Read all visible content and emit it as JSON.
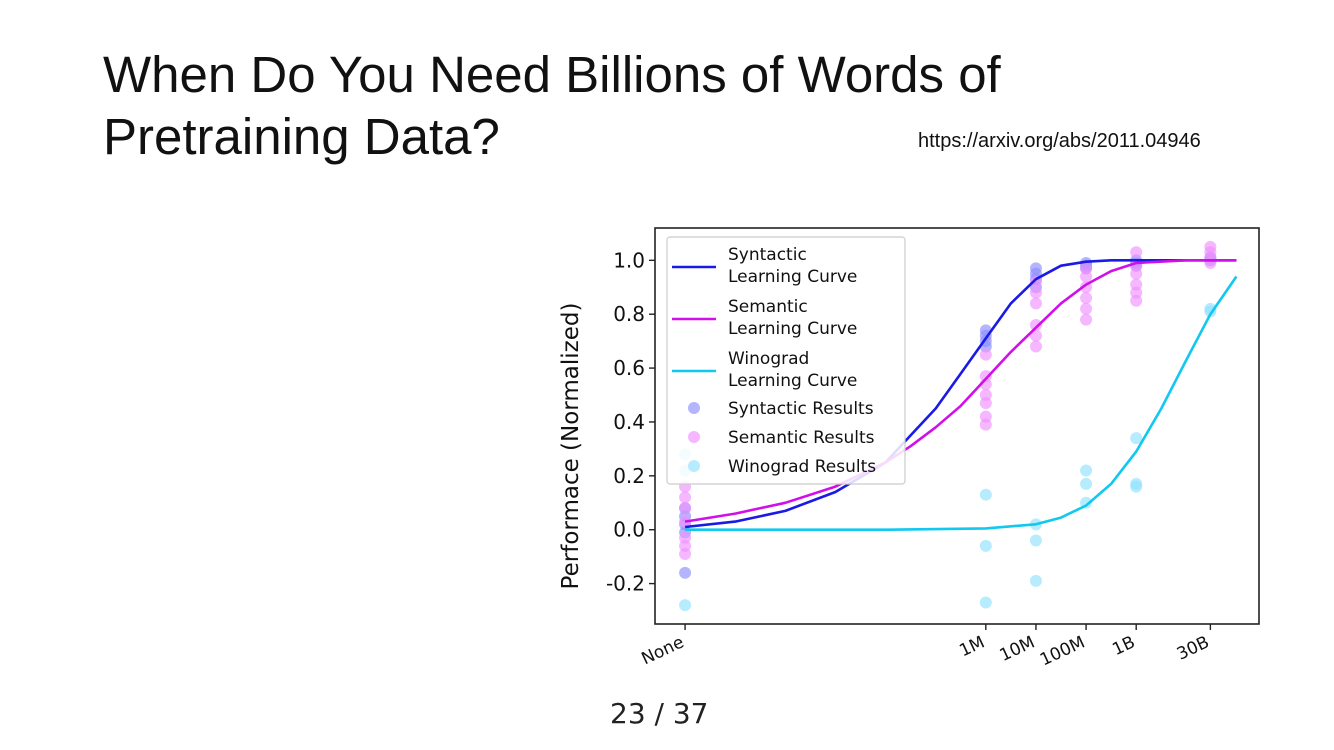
{
  "slide": {
    "title_line1": "When Do You Need Billions of Words of",
    "title_line2": "Pretraining Data?",
    "source_url": "https://arxiv.org/abs/2011.04946",
    "page_counter": "23 / 37"
  },
  "colors": {
    "syntactic": "#1a1ae6",
    "semantic": "#d010e8",
    "winograd": "#10c8f0",
    "syntactic_dot": "#8c8cff",
    "semantic_dot": "#f090ff",
    "winograd_dot": "#90e2ff"
  },
  "chart_data": {
    "type": "scatter",
    "title": "",
    "xlabel": "",
    "ylabel": "Performace (Normalized)",
    "x_scale": "log10 words (None at 0)",
    "x_ticks": [
      {
        "label": "None",
        "x": 0
      },
      {
        "label": "1M",
        "x": 6
      },
      {
        "label": "10M",
        "x": 7
      },
      {
        "label": "100M",
        "x": 8
      },
      {
        "label": "1B",
        "x": 9
      },
      {
        "label": "30B",
        "x": 10.48
      }
    ],
    "xlim": [
      -0.6,
      11.45
    ],
    "ylim": [
      -0.35,
      1.12
    ],
    "y_ticks": [
      "1.0",
      "0.8",
      "0.6",
      "0.4",
      "0.2",
      "0.0",
      "-0.2"
    ],
    "y_tick_values": [
      1.0,
      0.8,
      0.6,
      0.4,
      0.2,
      0.0,
      -0.2
    ],
    "legend_position": "top-left",
    "legend": [
      {
        "kind": "line",
        "series": "syntactic",
        "label1": "Syntactic",
        "label2": "Learning Curve"
      },
      {
        "kind": "line",
        "series": "semantic",
        "label1": "Semantic",
        "label2": "Learning Curve"
      },
      {
        "kind": "line",
        "series": "winograd",
        "label1": "Winograd",
        "label2": "Learning Curve"
      },
      {
        "kind": "dot",
        "series": "syntactic",
        "label1": "Syntactic Results"
      },
      {
        "kind": "dot",
        "series": "semantic",
        "label1": "Semantic Results"
      },
      {
        "kind": "dot",
        "series": "winograd",
        "label1": "Winograd Results"
      }
    ],
    "curves": [
      {
        "name": "Syntactic Learning Curve",
        "series": "syntactic",
        "x": [
          0,
          1,
          2,
          3,
          4,
          4.5,
          5,
          5.5,
          6,
          6.5,
          7,
          7.5,
          8,
          8.5,
          9,
          10,
          10.48,
          11
        ],
        "y": [
          0.01,
          0.03,
          0.07,
          0.14,
          0.25,
          0.35,
          0.45,
          0.58,
          0.71,
          0.84,
          0.93,
          0.98,
          0.995,
          1.0,
          1.0,
          1.0,
          1.0,
          1.0
        ]
      },
      {
        "name": "Semantic Learning Curve",
        "series": "semantic",
        "x": [
          0,
          1,
          2,
          3,
          4,
          4.5,
          5,
          5.5,
          6,
          6.5,
          7,
          7.5,
          8,
          8.5,
          9,
          10,
          10.48,
          11
        ],
        "y": [
          0.03,
          0.06,
          0.1,
          0.16,
          0.25,
          0.31,
          0.38,
          0.46,
          0.56,
          0.66,
          0.75,
          0.84,
          0.91,
          0.96,
          0.99,
          1.0,
          1.0,
          1.0
        ]
      },
      {
        "name": "Winograd Learning Curve",
        "series": "winograd",
        "x": [
          0,
          2,
          4,
          6,
          7,
          7.5,
          8,
          8.5,
          9,
          9.5,
          10,
          10.48,
          11
        ],
        "y": [
          0.0,
          0.0,
          0.0,
          0.005,
          0.02,
          0.045,
          0.09,
          0.17,
          0.29,
          0.45,
          0.63,
          0.8,
          0.94
        ]
      }
    ],
    "points": [
      {
        "series": "winograd",
        "x": 0,
        "y": -0.28
      },
      {
        "series": "winograd",
        "x": 0,
        "y": 0.28
      },
      {
        "series": "winograd",
        "x": 0,
        "y": 0.22
      },
      {
        "series": "winograd",
        "x": 6,
        "y": 0.13
      },
      {
        "series": "winograd",
        "x": 6,
        "y": -0.06
      },
      {
        "series": "winograd",
        "x": 6,
        "y": -0.27
      },
      {
        "series": "winograd",
        "x": 7,
        "y": 0.02
      },
      {
        "series": "winograd",
        "x": 7,
        "y": -0.04
      },
      {
        "series": "winograd",
        "x": 7,
        "y": -0.19
      },
      {
        "series": "winograd",
        "x": 8,
        "y": 0.22
      },
      {
        "series": "winograd",
        "x": 8,
        "y": 0.17
      },
      {
        "series": "winograd",
        "x": 8,
        "y": 0.1
      },
      {
        "series": "winograd",
        "x": 9,
        "y": 0.34
      },
      {
        "series": "winograd",
        "x": 9,
        "y": 0.17
      },
      {
        "series": "winograd",
        "x": 9,
        "y": 0.16
      },
      {
        "series": "winograd",
        "x": 10.48,
        "y": 0.82
      },
      {
        "series": "winograd",
        "x": 10.48,
        "y": 0.81
      },
      {
        "series": "syntactic",
        "x": 0,
        "y": -0.16
      },
      {
        "series": "syntactic",
        "x": 0,
        "y": 0.08
      },
      {
        "series": "syntactic",
        "x": 0,
        "y": 0.05
      },
      {
        "series": "syntactic",
        "x": 0,
        "y": 0.02
      },
      {
        "series": "syntactic",
        "x": 0,
        "y": -0.01
      },
      {
        "series": "syntactic",
        "x": 6,
        "y": 0.74
      },
      {
        "series": "syntactic",
        "x": 6,
        "y": 0.72
      },
      {
        "series": "syntactic",
        "x": 6,
        "y": 0.7
      },
      {
        "series": "syntactic",
        "x": 6,
        "y": 0.68
      },
      {
        "series": "syntactic",
        "x": 7,
        "y": 0.97
      },
      {
        "series": "syntactic",
        "x": 7,
        "y": 0.95
      },
      {
        "series": "syntactic",
        "x": 7,
        "y": 0.93
      },
      {
        "series": "syntactic",
        "x": 7,
        "y": 0.9
      },
      {
        "series": "syntactic",
        "x": 8,
        "y": 0.99
      },
      {
        "series": "syntactic",
        "x": 8,
        "y": 0.98
      },
      {
        "series": "syntactic",
        "x": 8,
        "y": 0.97
      },
      {
        "series": "syntactic",
        "x": 9,
        "y": 1.0
      },
      {
        "series": "syntactic",
        "x": 9,
        "y": 0.99
      },
      {
        "series": "syntactic",
        "x": 9,
        "y": 0.98
      },
      {
        "series": "syntactic",
        "x": 10.48,
        "y": 1.01
      },
      {
        "series": "syntactic",
        "x": 10.48,
        "y": 1.0
      },
      {
        "series": "semantic",
        "x": 0,
        "y": 0.16
      },
      {
        "series": "semantic",
        "x": 0,
        "y": 0.12
      },
      {
        "series": "semantic",
        "x": 0,
        "y": 0.08
      },
      {
        "series": "semantic",
        "x": 0,
        "y": 0.03
      },
      {
        "series": "semantic",
        "x": 0,
        "y": -0.03
      },
      {
        "series": "semantic",
        "x": 0,
        "y": -0.06
      },
      {
        "series": "semantic",
        "x": 0,
        "y": -0.09
      },
      {
        "series": "semantic",
        "x": 6,
        "y": 0.65
      },
      {
        "series": "semantic",
        "x": 6,
        "y": 0.57
      },
      {
        "series": "semantic",
        "x": 6,
        "y": 0.54
      },
      {
        "series": "semantic",
        "x": 6,
        "y": 0.5
      },
      {
        "series": "semantic",
        "x": 6,
        "y": 0.47
      },
      {
        "series": "semantic",
        "x": 6,
        "y": 0.42
      },
      {
        "series": "semantic",
        "x": 6,
        "y": 0.39
      },
      {
        "series": "semantic",
        "x": 7,
        "y": 0.92
      },
      {
        "series": "semantic",
        "x": 7,
        "y": 0.88
      },
      {
        "series": "semantic",
        "x": 7,
        "y": 0.84
      },
      {
        "series": "semantic",
        "x": 7,
        "y": 0.76
      },
      {
        "series": "semantic",
        "x": 7,
        "y": 0.72
      },
      {
        "series": "semantic",
        "x": 7,
        "y": 0.68
      },
      {
        "series": "semantic",
        "x": 8,
        "y": 0.97
      },
      {
        "series": "semantic",
        "x": 8,
        "y": 0.94
      },
      {
        "series": "semantic",
        "x": 8,
        "y": 0.9
      },
      {
        "series": "semantic",
        "x": 8,
        "y": 0.86
      },
      {
        "series": "semantic",
        "x": 8,
        "y": 0.82
      },
      {
        "series": "semantic",
        "x": 8,
        "y": 0.78
      },
      {
        "series": "semantic",
        "x": 9,
        "y": 1.03
      },
      {
        "series": "semantic",
        "x": 9,
        "y": 0.98
      },
      {
        "series": "semantic",
        "x": 9,
        "y": 0.95
      },
      {
        "series": "semantic",
        "x": 9,
        "y": 0.91
      },
      {
        "series": "semantic",
        "x": 9,
        "y": 0.88
      },
      {
        "series": "semantic",
        "x": 9,
        "y": 0.85
      },
      {
        "series": "semantic",
        "x": 10.48,
        "y": 1.05
      },
      {
        "series": "semantic",
        "x": 10.48,
        "y": 1.03
      },
      {
        "series": "semantic",
        "x": 10.48,
        "y": 1.01
      },
      {
        "series": "semantic",
        "x": 10.48,
        "y": 0.99
      }
    ]
  }
}
